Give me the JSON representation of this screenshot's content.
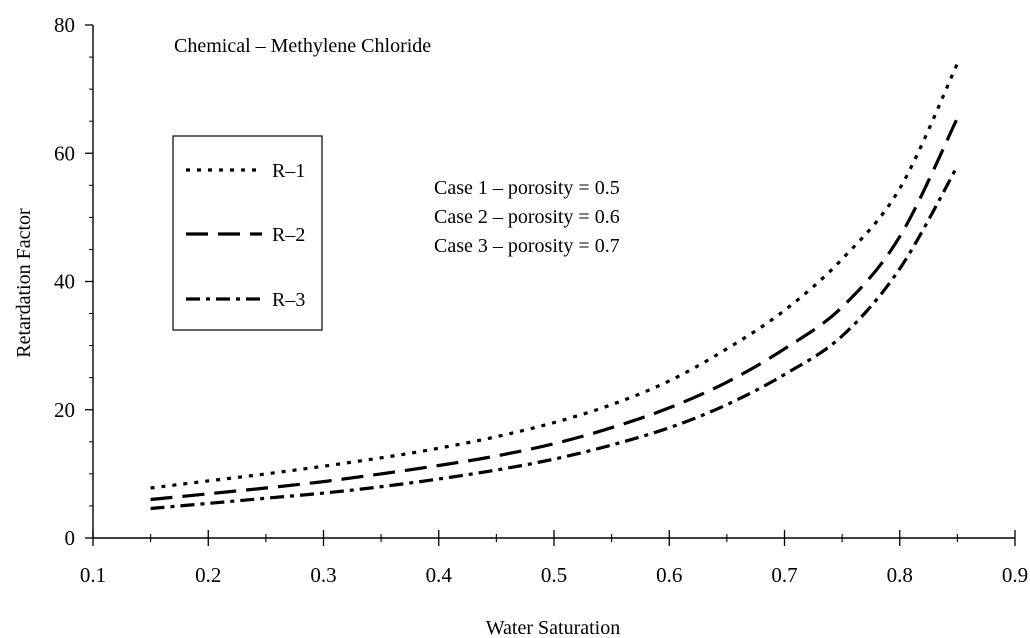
{
  "chart_data": {
    "type": "line",
    "title": "Chemical – Methylene Chloride",
    "xlabel": "Water Saturation",
    "ylabel": "Retardation Factor",
    "xlim": [
      0.1,
      0.9
    ],
    "ylim": [
      0,
      80
    ],
    "x_ticks": [
      "0.1",
      "0.2",
      "0.3",
      "0.4",
      "0.5",
      "0.6",
      "0.7",
      "0.8",
      "0.9"
    ],
    "y_ticks": [
      "0",
      "20",
      "40",
      "60",
      "80"
    ],
    "grid": false,
    "legend_position": "left",
    "annotations": [
      "Case 1 – porosity = 0.5",
      "Case 2 – porosity = 0.6",
      "Case 3 – porosity = 0.7"
    ],
    "series": [
      {
        "name": "R–1",
        "dash": "dotted",
        "x": [
          0.15,
          0.2,
          0.25,
          0.3,
          0.35,
          0.4,
          0.45,
          0.5,
          0.55,
          0.6,
          0.65,
          0.7,
          0.75,
          0.8,
          0.85
        ],
        "y": [
          7.8,
          8.9,
          10.0,
          11.2,
          12.5,
          14.0,
          15.8,
          18.0,
          20.8,
          24.5,
          29.5,
          35.5,
          43.5,
          54.5,
          74.0
        ]
      },
      {
        "name": "R–2",
        "dash": "dashed",
        "x": [
          0.15,
          0.2,
          0.25,
          0.3,
          0.35,
          0.4,
          0.45,
          0.5,
          0.55,
          0.6,
          0.65,
          0.7,
          0.75,
          0.8,
          0.85
        ],
        "y": [
          6.0,
          6.9,
          7.8,
          8.8,
          10.0,
          11.3,
          12.8,
          14.7,
          17.2,
          20.3,
          24.3,
          29.5,
          36.0,
          47.0,
          65.5
        ]
      },
      {
        "name": "R–3",
        "dash": "dash-dot",
        "x": [
          0.15,
          0.2,
          0.25,
          0.3,
          0.35,
          0.4,
          0.45,
          0.5,
          0.55,
          0.6,
          0.65,
          0.7,
          0.75,
          0.8,
          0.85
        ],
        "y": [
          4.6,
          5.4,
          6.2,
          7.0,
          8.0,
          9.2,
          10.6,
          12.3,
          14.5,
          17.2,
          20.8,
          25.5,
          31.5,
          42.0,
          58.0
        ]
      }
    ]
  }
}
